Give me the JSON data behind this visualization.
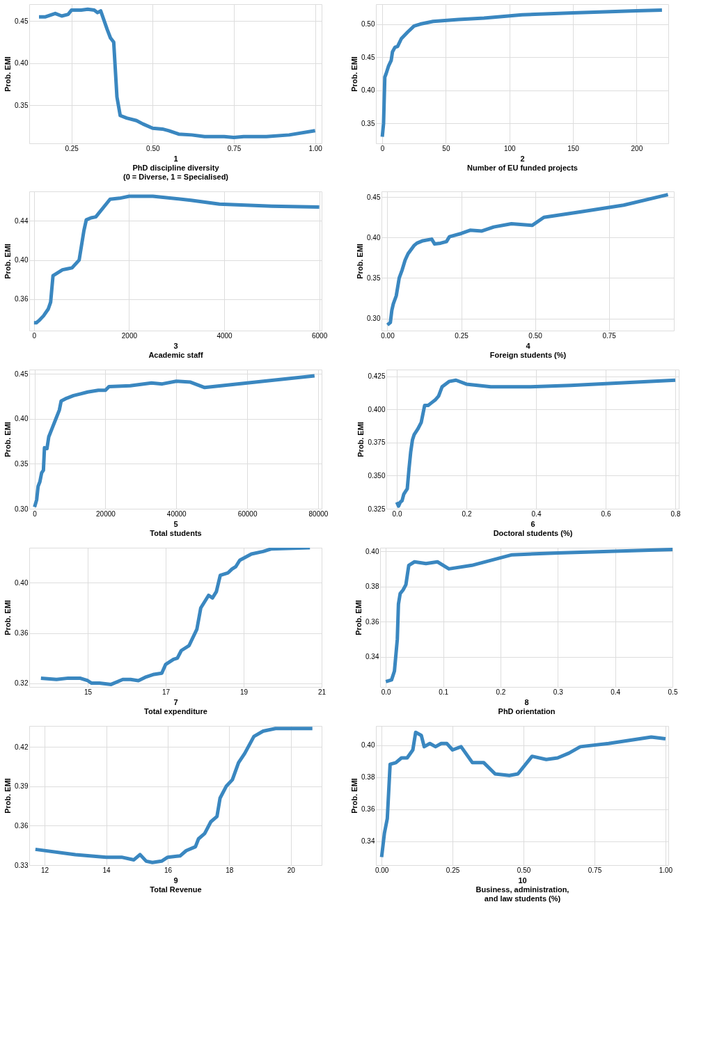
{
  "chart_data": [
    {
      "type": "line",
      "xlabel": "1\nPhD discipline diversity\n(0 = Diverse, 1 = Specialised)",
      "ylabel": "Prob. EMI",
      "grid": true,
      "xlim": [
        0.12,
        1.02
      ],
      "ylim": [
        0.305,
        0.47
      ],
      "xticks": [
        0.25,
        {
          "value": 0.5,
          "label": "0.50"
        },
        0.75,
        {
          "value": 1,
          "label": "1.00"
        }
      ],
      "yticks": [
        0.35,
        {
          "value": 0.4,
          "label": "0.40"
        },
        0.45
      ],
      "series": [
        {
          "color": "#3a87c0",
          "x": [
            0.15,
            0.17,
            0.2,
            0.22,
            0.24,
            0.25,
            0.28,
            0.3,
            0.32,
            0.33,
            0.34,
            0.36,
            0.37,
            0.38,
            0.39,
            0.4,
            0.42,
            0.45,
            0.47,
            0.5,
            0.53,
            0.55,
            0.58,
            0.62,
            0.66,
            0.72,
            0.75,
            0.78,
            0.85,
            0.92,
            1.0
          ],
          "values": [
            0.455,
            0.455,
            0.459,
            0.456,
            0.458,
            0.463,
            0.463,
            0.464,
            0.463,
            0.46,
            0.462,
            0.44,
            0.43,
            0.425,
            0.36,
            0.338,
            0.335,
            0.332,
            0.328,
            0.323,
            0.322,
            0.32,
            0.316,
            0.315,
            0.313,
            0.313,
            0.312,
            0.313,
            0.313,
            0.315,
            0.32
          ]
        }
      ]
    },
    {
      "type": "line",
      "xlabel": "2\nNumber of EU funded projects",
      "ylabel": "Prob. EMI",
      "grid": true,
      "xlim": [
        -5,
        225
      ],
      "ylim": [
        0.32,
        0.53
      ],
      "xticks": [
        0,
        50,
        100,
        150,
        200
      ],
      "yticks": [
        0.35,
        {
          "value": 0.4,
          "label": "0.40"
        },
        0.45,
        {
          "value": 0.5,
          "label": "0.50"
        }
      ],
      "series": [
        {
          "color": "#3a87c0",
          "x": [
            0,
            1,
            2,
            3,
            5,
            7,
            8,
            10,
            12,
            15,
            20,
            25,
            30,
            40,
            60,
            80,
            110,
            150,
            200,
            220
          ],
          "values": [
            0.33,
            0.35,
            0.42,
            0.425,
            0.437,
            0.445,
            0.458,
            0.465,
            0.466,
            0.478,
            0.488,
            0.497,
            0.5,
            0.504,
            0.507,
            0.509,
            0.514,
            0.517,
            0.52,
            0.521
          ]
        }
      ]
    },
    {
      "type": "line",
      "xlabel": "3\nAcademic staff",
      "ylabel": "Prob. EMI",
      "grid": true,
      "xlim": [
        -100,
        6050
      ],
      "ylim": [
        0.328,
        0.47
      ],
      "xticks": [
        0,
        2000,
        4000,
        6000
      ],
      "yticks": [
        0.36,
        {
          "value": 0.4,
          "label": "0.40"
        },
        0.44
      ],
      "series": [
        {
          "color": "#3a87c0",
          "x": [
            0,
            50,
            100,
            200,
            300,
            350,
            400,
            500,
            600,
            700,
            800,
            950,
            1050,
            1100,
            1200,
            1300,
            1600,
            1800,
            2000,
            2500,
            3300,
            3900,
            5000,
            6000
          ],
          "values": [
            0.336,
            0.336,
            0.338,
            0.343,
            0.35,
            0.357,
            0.384,
            0.387,
            0.39,
            0.391,
            0.392,
            0.4,
            0.43,
            0.441,
            0.443,
            0.444,
            0.462,
            0.463,
            0.465,
            0.465,
            0.461,
            0.457,
            0.455,
            0.454
          ]
        }
      ]
    },
    {
      "type": "line",
      "xlabel": "4\nForeign students (%)",
      "ylabel": "Prob. EMI",
      "grid": true,
      "xlim": [
        -0.02,
        0.97
      ],
      "ylim": [
        0.285,
        0.457
      ],
      "xticks": [
        {
          "value": 0,
          "label": "0.00"
        },
        0.25,
        {
          "value": 0.5,
          "label": "0.50"
        },
        0.75
      ],
      "yticks": [
        {
          "value": 0.3,
          "label": "0.30"
        },
        0.35,
        {
          "value": 0.4,
          "label": "0.40"
        },
        0.45
      ],
      "series": [
        {
          "color": "#3a87c0",
          "x": [
            0,
            0.01,
            0.015,
            0.02,
            0.03,
            0.04,
            0.05,
            0.06,
            0.07,
            0.08,
            0.09,
            0.1,
            0.12,
            0.15,
            0.16,
            0.18,
            0.2,
            0.21,
            0.25,
            0.28,
            0.32,
            0.36,
            0.42,
            0.49,
            0.53,
            0.66,
            0.8,
            0.95
          ],
          "values": [
            0.292,
            0.295,
            0.31,
            0.318,
            0.328,
            0.35,
            0.36,
            0.372,
            0.38,
            0.385,
            0.39,
            0.393,
            0.396,
            0.398,
            0.392,
            0.393,
            0.395,
            0.401,
            0.405,
            0.409,
            0.408,
            0.413,
            0.417,
            0.415,
            0.425,
            0.432,
            0.44,
            0.453
          ]
        }
      ]
    },
    {
      "type": "line",
      "xlabel": "5\nTotal students",
      "ylabel": "Prob. EMI",
      "grid": true,
      "xlim": [
        -1500,
        81000
      ],
      "ylim": [
        0.3,
        0.455
      ],
      "xticks": [
        0,
        20000,
        40000,
        60000,
        80000
      ],
      "yticks": [
        {
          "value": 0.3,
          "label": "0.30"
        },
        0.35,
        {
          "value": 0.4,
          "label": "0.40"
        },
        0.45
      ],
      "series": [
        {
          "color": "#3a87c0",
          "x": [
            0,
            600,
            1000,
            1500,
            2000,
            2500,
            2800,
            3500,
            4000,
            5000,
            6000,
            7000,
            7500,
            9000,
            11000,
            13000,
            15000,
            18000,
            20000,
            21000,
            27000,
            33000,
            36000,
            40000,
            44000,
            48000,
            60000,
            79000
          ],
          "values": [
            0.302,
            0.31,
            0.325,
            0.33,
            0.34,
            0.343,
            0.368,
            0.367,
            0.38,
            0.39,
            0.4,
            0.41,
            0.42,
            0.423,
            0.426,
            0.428,
            0.43,
            0.432,
            0.432,
            0.436,
            0.437,
            0.44,
            0.439,
            0.442,
            0.441,
            0.435,
            0.44,
            0.448
          ]
        }
      ]
    },
    {
      "type": "line",
      "xlabel": "6\nDoctoral students (%)",
      "ylabel": "Prob. EMI",
      "grid": true,
      "xlim": [
        -0.03,
        0.81
      ],
      "ylim": [
        0.325,
        0.43
      ],
      "xticks": [
        {
          "value": 0,
          "label": "0.0"
        },
        0.2,
        0.4,
        0.6,
        0.8
      ],
      "yticks": [
        0.325,
        {
          "value": 0.35,
          "label": "0.350"
        },
        0.375,
        {
          "value": 0.4,
          "label": "0.400"
        },
        0.425
      ],
      "series": [
        {
          "color": "#3a87c0",
          "x": [
            0,
            0.005,
            0.01,
            0.015,
            0.02,
            0.025,
            0.03,
            0.035,
            0.04,
            0.045,
            0.05,
            0.06,
            0.07,
            0.08,
            0.09,
            0.1,
            0.11,
            0.12,
            0.13,
            0.15,
            0.17,
            0.2,
            0.27,
            0.38,
            0.5,
            0.65,
            0.8
          ],
          "values": [
            0.33,
            0.327,
            0.33,
            0.331,
            0.336,
            0.338,
            0.34,
            0.355,
            0.368,
            0.377,
            0.381,
            0.385,
            0.39,
            0.403,
            0.403,
            0.405,
            0.407,
            0.41,
            0.417,
            0.421,
            0.422,
            0.419,
            0.417,
            0.417,
            0.418,
            0.42,
            0.422
          ]
        }
      ]
    },
    {
      "type": "line",
      "xlabel": "7\nTotal expenditure",
      "ylabel": "Prob. EMI",
      "grid": true,
      "xlim": [
        13.5,
        21
      ],
      "ylim": [
        0.317,
        0.428
      ],
      "xticks": [
        15,
        17,
        19,
        21
      ],
      "yticks": [
        0.32,
        0.36,
        {
          "value": 0.4,
          "label": "0.40"
        }
      ],
      "series": [
        {
          "color": "#3a87c0",
          "x": [
            13.8,
            14.2,
            14.5,
            14.8,
            15,
            15.1,
            15.3,
            15.6,
            15.9,
            16.1,
            16.3,
            16.5,
            16.7,
            16.9,
            17,
            17.2,
            17.3,
            17.4,
            17.6,
            17.8,
            17.9,
            18.1,
            18.2,
            18.3,
            18.4,
            18.6,
            18.7,
            18.8,
            18.9,
            19.2,
            19.5,
            19.7,
            20.7
          ],
          "values": [
            0.324,
            0.323,
            0.324,
            0.324,
            0.322,
            0.32,
            0.32,
            0.319,
            0.323,
            0.323,
            0.322,
            0.325,
            0.327,
            0.328,
            0.335,
            0.339,
            0.34,
            0.346,
            0.35,
            0.363,
            0.38,
            0.39,
            0.388,
            0.393,
            0.406,
            0.408,
            0.411,
            0.413,
            0.418,
            0.423,
            0.425,
            0.427,
            0.428
          ]
        }
      ]
    },
    {
      "type": "line",
      "xlabel": "8\nPhD orientation",
      "ylabel": "Prob. EMI",
      "grid": true,
      "xlim": [
        -0.01,
        0.5
      ],
      "ylim": [
        0.323,
        0.402
      ],
      "xticks": [
        {
          "value": 0,
          "label": "0.0"
        },
        0.1,
        0.2,
        0.3,
        0.4,
        0.5
      ],
      "yticks": [
        0.34,
        0.36,
        0.38,
        {
          "value": 0.4,
          "label": "0.40"
        }
      ],
      "series": [
        {
          "color": "#3a87c0",
          "x": [
            0,
            0.01,
            0.015,
            0.02,
            0.022,
            0.025,
            0.03,
            0.035,
            0.04,
            0.05,
            0.07,
            0.09,
            0.11,
            0.15,
            0.22,
            0.3,
            0.5
          ],
          "values": [
            0.326,
            0.327,
            0.332,
            0.35,
            0.37,
            0.376,
            0.378,
            0.381,
            0.392,
            0.394,
            0.393,
            0.394,
            0.39,
            0.392,
            0.398,
            0.399,
            0.401
          ]
        }
      ]
    },
    {
      "type": "line",
      "xlabel": "9\nTotal Revenue",
      "ylabel": "Prob. EMI",
      "grid": true,
      "xlim": [
        11.5,
        21
      ],
      "ylim": [
        0.33,
        0.436
      ],
      "xticks": [
        12,
        14,
        16,
        18,
        20
      ],
      "yticks": [
        0.33,
        0.36,
        0.39,
        0.42
      ],
      "series": [
        {
          "color": "#3a87c0",
          "x": [
            11.7,
            13,
            14,
            14.5,
            14.9,
            15.1,
            15.3,
            15.5,
            15.8,
            16,
            16.4,
            16.6,
            16.9,
            17,
            17.2,
            17.4,
            17.6,
            17.7,
            17.9,
            18.1,
            18.3,
            18.5,
            18.8,
            19.1,
            19.5,
            20,
            20.7
          ],
          "values": [
            0.342,
            0.338,
            0.336,
            0.336,
            0.334,
            0.338,
            0.333,
            0.332,
            0.333,
            0.336,
            0.337,
            0.341,
            0.344,
            0.35,
            0.354,
            0.363,
            0.367,
            0.381,
            0.39,
            0.395,
            0.408,
            0.415,
            0.428,
            0.432,
            0.434,
            0.434,
            0.434
          ]
        }
      ]
    },
    {
      "type": "line",
      "xlabel": "10\nBusiness, administration,\nand law students (%)",
      "ylabel": "Prob. EMI",
      "grid": true,
      "xlim": [
        -0.02,
        1.01
      ],
      "ylim": [
        0.325,
        0.412
      ],
      "xticks": [
        {
          "value": 0,
          "label": "0.00"
        },
        0.25,
        {
          "value": 0.5,
          "label": "0.50"
        },
        0.75,
        {
          "value": 1,
          "label": "1.00"
        }
      ],
      "yticks": [
        0.34,
        0.36,
        0.38,
        {
          "value": 0.4,
          "label": "0.40"
        }
      ],
      "series": [
        {
          "color": "#3a87c0",
          "x": [
            0,
            0.01,
            0.02,
            0.03,
            0.05,
            0.07,
            0.09,
            0.11,
            0.12,
            0.14,
            0.15,
            0.17,
            0.19,
            0.21,
            0.23,
            0.25,
            0.28,
            0.32,
            0.36,
            0.4,
            0.45,
            0.48,
            0.53,
            0.58,
            0.62,
            0.66,
            0.7,
            0.8,
            0.95,
            1.0
          ],
          "values": [
            0.33,
            0.345,
            0.354,
            0.388,
            0.389,
            0.392,
            0.392,
            0.397,
            0.408,
            0.406,
            0.399,
            0.401,
            0.399,
            0.401,
            0.401,
            0.397,
            0.399,
            0.389,
            0.389,
            0.382,
            0.381,
            0.382,
            0.393,
            0.391,
            0.392,
            0.395,
            0.399,
            0.401,
            0.405,
            0.404
          ]
        }
      ]
    }
  ]
}
